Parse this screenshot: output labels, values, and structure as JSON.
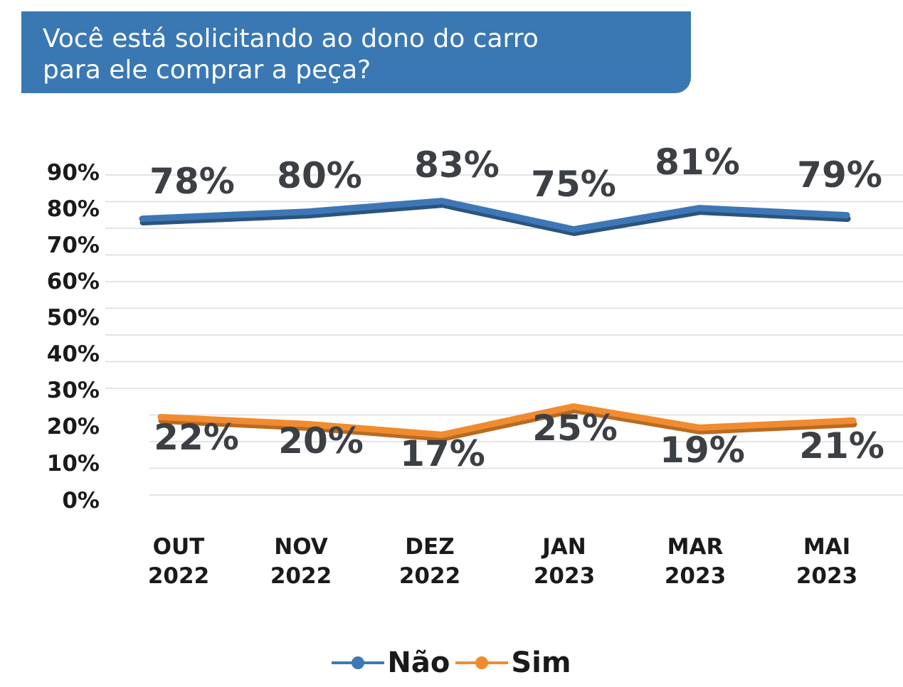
{
  "title": {
    "line1": "Você está solicitando ao dono do carro",
    "line2": "para ele comprar a peça?"
  },
  "colors": {
    "title_bg": "#3a78b4",
    "nao": "#3e77b6",
    "sim": "#f08b2f",
    "label": "#3c3f44"
  },
  "legend": {
    "nao": "Não",
    "sim": "Sim"
  },
  "chart_data": {
    "type": "line",
    "title": "Você está solicitando ao dono do carro para ele comprar a peça?",
    "categories": [
      [
        "OUT",
        "2022"
      ],
      [
        "NOV",
        "2022"
      ],
      [
        "DEZ",
        "2022"
      ],
      [
        "JAN",
        "2023"
      ],
      [
        "MAR",
        "2023"
      ],
      [
        "MAI",
        "2023"
      ]
    ],
    "series": [
      {
        "name": "Não",
        "values": [
          78,
          80,
          83,
          75,
          81,
          79
        ],
        "labels": [
          "78%",
          "80%",
          "83%",
          "75%",
          "81%",
          "79%"
        ]
      },
      {
        "name": "Sim",
        "values": [
          22,
          20,
          17,
          25,
          19,
          21
        ],
        "labels": [
          "22%",
          "20%",
          "17%",
          "25%",
          "19%",
          "21%"
        ]
      }
    ],
    "yticks": [
      "0%",
      "10%",
      "20%",
      "30%",
      "40%",
      "50%",
      "60%",
      "70%",
      "80%",
      "90%"
    ],
    "ylim": [
      0,
      90
    ],
    "grid": true,
    "legend_position": "bottom-center"
  }
}
